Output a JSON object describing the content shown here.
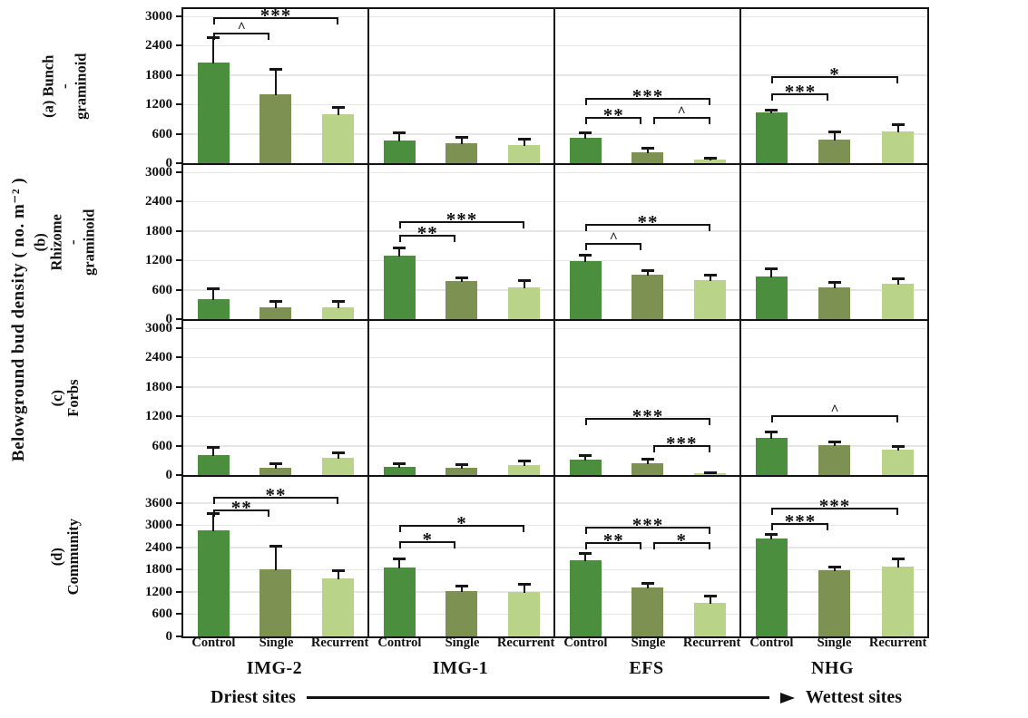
{
  "chart_data": {
    "type": "bar",
    "title": "",
    "ylabel": "Belowground bud density ( no. m⁻² )",
    "treatments": [
      "Control",
      "Single",
      "Recurrent"
    ],
    "sites": [
      "IMG-2",
      "IMG-1",
      "EFS",
      "NHG"
    ],
    "moisture_gradient": {
      "left_label": "Driest sites",
      "right_label": "Wettest sites"
    },
    "bar_colors": [
      "#4a8e3e",
      "#7d9152",
      "#b9d488"
    ],
    "error_bar_color": "#161616",
    "grid": true,
    "legend_position": "none",
    "significance_note": "brackets: ^ , * , ** , *** between treatment pairs",
    "rows": [
      {
        "label": "(a) Bunch\n-graminoid",
        "ylim": [
          0,
          3150
        ],
        "yticks": [
          0,
          600,
          1200,
          1800,
          2400,
          3000
        ],
        "panels": [
          {
            "site": "IMG-2",
            "means": [
              2050,
              1400,
              1010
            ],
            "errors": [
              530,
              530,
              130
            ],
            "sig": [
              {
                "pair": [
                  0,
                  2
                ],
                "label": "***",
                "y": 2980
              },
              {
                "pair": [
                  0,
                  1
                ],
                "label": "^",
                "y": 2670
              }
            ]
          },
          {
            "site": "IMG-1",
            "means": [
              460,
              410,
              370
            ],
            "errors": [
              165,
              130,
              130
            ],
            "sig": []
          },
          {
            "site": "EFS",
            "means": [
              520,
              225,
              75
            ],
            "errors": [
              110,
              90,
              40
            ],
            "sig": [
              {
                "pair": [
                  0,
                  2
                ],
                "label": "***",
                "y": 1340
              },
              {
                "pair": [
                  0,
                  1
                ],
                "label": "**",
                "y": 940
              },
              {
                "pair": [
                  1,
                  2
                ],
                "label": "^",
                "y": 940
              }
            ]
          },
          {
            "site": "NHG",
            "means": [
              1040,
              480,
              650
            ],
            "errors": [
              50,
              160,
              150
            ],
            "sig": [
              {
                "pair": [
                  0,
                  2
                ],
                "label": "*",
                "y": 1770
              },
              {
                "pair": [
                  0,
                  1
                ],
                "label": "***",
                "y": 1420
              }
            ]
          }
        ]
      },
      {
        "label": "(b) Rhizome\n-graminoid",
        "ylim": [
          0,
          3150
        ],
        "yticks": [
          0,
          600,
          1200,
          1800,
          2400,
          3000
        ],
        "panels": [
          {
            "site": "IMG-2",
            "means": [
              400,
              250,
              250
            ],
            "errors": [
              230,
              130,
              115
            ],
            "sig": []
          },
          {
            "site": "IMG-1",
            "means": [
              1300,
              770,
              650
            ],
            "errors": [
              170,
              80,
              150
            ],
            "sig": [
              {
                "pair": [
                  0,
                  2
                ],
                "label": "***",
                "y": 2000
              },
              {
                "pair": [
                  0,
                  1
                ],
                "label": "**",
                "y": 1720
              }
            ]
          },
          {
            "site": "EFS",
            "means": [
              1190,
              915,
              800
            ],
            "errors": [
              135,
              80,
              115
            ],
            "sig": [
              {
                "pair": [
                  0,
                  2
                ],
                "label": "**",
                "y": 1950
              },
              {
                "pair": [
                  0,
                  1
                ],
                "label": "^",
                "y": 1550
              }
            ]
          },
          {
            "site": "NHG",
            "means": [
              880,
              650,
              725
            ],
            "errors": [
              150,
              115,
              115
            ],
            "sig": []
          }
        ]
      },
      {
        "label": "(c) Forbs",
        "ylim": [
          0,
          3150
        ],
        "yticks": [
          0,
          600,
          1200,
          1800,
          2400,
          3000
        ],
        "panels": [
          {
            "site": "IMG-2",
            "means": [
              400,
              140,
              360
            ],
            "errors": [
              170,
              110,
              95
            ],
            "sig": []
          },
          {
            "site": "IMG-1",
            "means": [
              170,
              150,
              200
            ],
            "errors": [
              75,
              70,
              90
            ],
            "sig": []
          },
          {
            "site": "EFS",
            "means": [
              320,
              245,
              40
            ],
            "errors": [
              95,
              95,
              25
            ],
            "sig": [
              {
                "pair": [
                  0,
                  2
                ],
                "label": "***",
                "y": 1170
              },
              {
                "pair": [
                  1,
                  2
                ],
                "label": "***",
                "y": 620
              }
            ]
          },
          {
            "site": "NHG",
            "means": [
              755,
              620,
              510
            ],
            "errors": [
              130,
              60,
              75
            ],
            "sig": [
              {
                "pair": [
                  0,
                  2
                ],
                "label": "^",
                "y": 1230
              }
            ]
          }
        ]
      },
      {
        "label": "(d) Community",
        "ylim": [
          0,
          4300
        ],
        "yticks": [
          0,
          600,
          1200,
          1800,
          2400,
          3000,
          3600
        ],
        "panels": [
          {
            "site": "IMG-2",
            "means": [
              2850,
              1800,
              1560
            ],
            "errors": [
              470,
              640,
              215
            ],
            "sig": [
              {
                "pair": [
                  0,
                  2
                ],
                "label": "**",
                "y": 3760
              },
              {
                "pair": [
                  0,
                  1
                ],
                "label": "**",
                "y": 3430
              }
            ]
          },
          {
            "site": "IMG-1",
            "means": [
              1850,
              1210,
              1200
            ],
            "errors": [
              250,
              170,
              210
            ],
            "sig": [
              {
                "pair": [
                  0,
                  2
                ],
                "label": "*",
                "y": 3000
              },
              {
                "pair": [
                  0,
                  1
                ],
                "label": "*",
                "y": 2560
              }
            ]
          },
          {
            "site": "EFS",
            "means": [
              2050,
              1330,
              900
            ],
            "errors": [
              190,
              120,
              190
            ],
            "sig": [
              {
                "pair": [
                  0,
                  2
                ],
                "label": "***",
                "y": 2960
              },
              {
                "pair": [
                  0,
                  1
                ],
                "label": "**",
                "y": 2530
              },
              {
                "pair": [
                  1,
                  2
                ],
                "label": "*",
                "y": 2530
              }
            ]
          },
          {
            "site": "NHG",
            "means": [
              2650,
              1780,
              1870
            ],
            "errors": [
              120,
              110,
              240
            ],
            "sig": [
              {
                "pair": [
                  0,
                  2
                ],
                "label": "***",
                "y": 3480
              },
              {
                "pair": [
                  0,
                  1
                ],
                "label": "***",
                "y": 3060
              }
            ]
          }
        ]
      }
    ]
  }
}
